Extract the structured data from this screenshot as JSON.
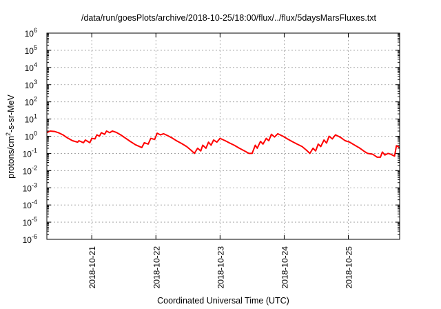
{
  "chart_data": {
    "type": "line",
    "title": "/data/run/goesPlots/archive/2018-10-25/18:00/flux/../flux/5daysMarsFluxes.txt",
    "xlabel": "Coordinated Universal Time (UTC)",
    "ylabel_base": "protons/cm",
    "ylabel_sup": "2",
    "ylabel_rest": "-s-sr-MeV",
    "y_scale": "log",
    "ylim": [
      1e-06,
      1000000.0
    ],
    "y_ticks": [
      {
        "exp": "-6",
        "value": 1e-06
      },
      {
        "exp": "-5",
        "value": 1e-05
      },
      {
        "exp": "-4",
        "value": 0.0001
      },
      {
        "exp": "-3",
        "value": 0.001
      },
      {
        "exp": "-2",
        "value": 0.01
      },
      {
        "exp": "-1",
        "value": 0.1
      },
      {
        "exp": "0",
        "value": 1
      },
      {
        "exp": "1",
        "value": 10
      },
      {
        "exp": "2",
        "value": 100
      },
      {
        "exp": "3",
        "value": 1000
      },
      {
        "exp": "4",
        "value": 10000
      },
      {
        "exp": "5",
        "value": 100000
      },
      {
        "exp": "6",
        "value": 1000000
      }
    ],
    "y_tick_base": "10",
    "xlim": [
      0.3,
      5.8
    ],
    "x_ticks": [
      {
        "label": "2018-10-21",
        "x": 1
      },
      {
        "label": "2018-10-22",
        "x": 2
      },
      {
        "label": "2018-10-23",
        "x": 3
      },
      {
        "label": "2018-10-24",
        "x": 4
      },
      {
        "label": "2018-10-25",
        "x": 5
      }
    ],
    "grid": true,
    "series": [
      {
        "color": "#ff0000",
        "values": [
          [
            0.3,
            1.6
          ],
          [
            0.35,
            2.0
          ],
          [
            0.42,
            1.9
          ],
          [
            0.48,
            1.6
          ],
          [
            0.55,
            1.2
          ],
          [
            0.62,
            0.8
          ],
          [
            0.7,
            0.55
          ],
          [
            0.78,
            0.45
          ],
          [
            0.8,
            0.55
          ],
          [
            0.87,
            0.42
          ],
          [
            0.9,
            0.6
          ],
          [
            0.97,
            0.42
          ],
          [
            1.0,
            0.75
          ],
          [
            1.05,
            0.7
          ],
          [
            1.08,
            1.2
          ],
          [
            1.12,
            1.0
          ],
          [
            1.15,
            1.6
          ],
          [
            1.2,
            1.3
          ],
          [
            1.23,
            2.0
          ],
          [
            1.28,
            1.6
          ],
          [
            1.32,
            2.0
          ],
          [
            1.38,
            1.7
          ],
          [
            1.45,
            1.2
          ],
          [
            1.52,
            0.8
          ],
          [
            1.6,
            0.5
          ],
          [
            1.68,
            0.32
          ],
          [
            1.78,
            0.22
          ],
          [
            1.82,
            0.42
          ],
          [
            1.88,
            0.35
          ],
          [
            1.92,
            0.75
          ],
          [
            1.98,
            0.65
          ],
          [
            2.02,
            1.5
          ],
          [
            2.07,
            1.2
          ],
          [
            2.12,
            1.4
          ],
          [
            2.18,
            1.1
          ],
          [
            2.25,
            0.8
          ],
          [
            2.32,
            0.55
          ],
          [
            2.4,
            0.38
          ],
          [
            2.48,
            0.25
          ],
          [
            2.55,
            0.15
          ],
          [
            2.6,
            0.1
          ],
          [
            2.65,
            0.2
          ],
          [
            2.7,
            0.14
          ],
          [
            2.73,
            0.3
          ],
          [
            2.78,
            0.2
          ],
          [
            2.82,
            0.45
          ],
          [
            2.86,
            0.3
          ],
          [
            2.9,
            0.6
          ],
          [
            2.95,
            0.45
          ],
          [
            3.0,
            0.75
          ],
          [
            3.08,
            0.55
          ],
          [
            3.15,
            0.4
          ],
          [
            3.22,
            0.3
          ],
          [
            3.3,
            0.2
          ],
          [
            3.38,
            0.14
          ],
          [
            3.45,
            0.1
          ],
          [
            3.5,
            0.1
          ],
          [
            3.55,
            0.3
          ],
          [
            3.58,
            0.2
          ],
          [
            3.63,
            0.5
          ],
          [
            3.67,
            0.35
          ],
          [
            3.72,
            0.75
          ],
          [
            3.76,
            0.55
          ],
          [
            3.8,
            1.3
          ],
          [
            3.85,
            0.9
          ],
          [
            3.9,
            1.4
          ],
          [
            3.98,
            1.0
          ],
          [
            4.05,
            0.7
          ],
          [
            4.12,
            0.5
          ],
          [
            4.2,
            0.35
          ],
          [
            4.28,
            0.25
          ],
          [
            4.35,
            0.15
          ],
          [
            4.4,
            0.1
          ],
          [
            4.45,
            0.2
          ],
          [
            4.49,
            0.14
          ],
          [
            4.53,
            0.35
          ],
          [
            4.57,
            0.25
          ],
          [
            4.62,
            0.6
          ],
          [
            4.66,
            0.4
          ],
          [
            4.7,
            1.0
          ],
          [
            4.75,
            0.7
          ],
          [
            4.8,
            1.2
          ],
          [
            4.88,
            0.85
          ],
          [
            4.95,
            0.55
          ],
          [
            5.02,
            0.45
          ],
          [
            5.1,
            0.3
          ],
          [
            5.18,
            0.2
          ],
          [
            5.25,
            0.13
          ],
          [
            5.3,
            0.1
          ],
          [
            5.38,
            0.09
          ],
          [
            5.45,
            0.06
          ],
          [
            5.5,
            0.06
          ],
          [
            5.53,
            0.12
          ],
          [
            5.57,
            0.08
          ],
          [
            5.62,
            0.1
          ],
          [
            5.66,
            0.09
          ],
          [
            5.72,
            0.07
          ],
          [
            5.75,
            0.28
          ],
          [
            5.8,
            0.22
          ]
        ]
      }
    ]
  }
}
